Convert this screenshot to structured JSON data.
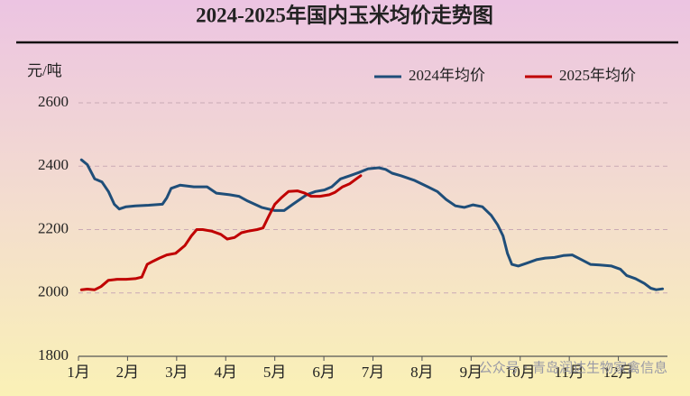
{
  "chart_data": {
    "type": "line",
    "title": "2024-2025年国内玉米均价走势图",
    "y_label": "元/吨",
    "watermark": "公众号 · 青岛润达生物家禽信息",
    "ylim": [
      1800,
      2600
    ],
    "yticks": [
      1800,
      2000,
      2200,
      2400,
      2600
    ],
    "xlim": [
      1,
      13
    ],
    "xticks": [
      {
        "value": 1,
        "label": "1月"
      },
      {
        "value": 2,
        "label": "2月"
      },
      {
        "value": 3,
        "label": "3月"
      },
      {
        "value": 4,
        "label": "4月"
      },
      {
        "value": 5,
        "label": "5月"
      },
      {
        "value": 6,
        "label": "6月"
      },
      {
        "value": 7,
        "label": "7月"
      },
      {
        "value": 8,
        "label": "8月"
      },
      {
        "value": 9,
        "label": "9月"
      },
      {
        "value": 10,
        "label": "10月"
      },
      {
        "value": 11,
        "label": "11月"
      },
      {
        "value": 12,
        "label": "12月"
      }
    ],
    "grid": true,
    "legend_position": "top-right",
    "series": [
      {
        "name": "2024年均价",
        "color": "#1f4e79",
        "x": [
          1.06,
          1.18,
          1.33,
          1.48,
          1.61,
          1.73,
          1.83,
          1.97,
          2.16,
          2.43,
          2.71,
          2.8,
          2.89,
          3.07,
          3.35,
          3.62,
          3.81,
          4.08,
          4.27,
          4.45,
          4.73,
          5.0,
          5.19,
          5.37,
          5.65,
          5.83,
          6.01,
          6.16,
          6.34,
          6.53,
          6.71,
          6.9,
          7.12,
          7.26,
          7.39,
          7.57,
          7.85,
          8.12,
          8.31,
          8.49,
          8.68,
          8.86,
          9.04,
          9.23,
          9.41,
          9.54,
          9.65,
          9.74,
          9.83,
          9.96,
          10.15,
          10.33,
          10.51,
          10.7,
          10.88,
          11.06,
          11.25,
          11.43,
          11.62,
          11.86,
          12.04,
          12.17,
          12.35,
          12.53,
          12.66,
          12.77,
          12.9
        ],
        "values": [
          2420,
          2405,
          2360,
          2350,
          2320,
          2280,
          2265,
          2272,
          2275,
          2277,
          2280,
          2300,
          2330,
          2340,
          2335,
          2335,
          2315,
          2310,
          2305,
          2290,
          2270,
          2260,
          2260,
          2280,
          2310,
          2320,
          2325,
          2335,
          2360,
          2370,
          2380,
          2392,
          2395,
          2390,
          2378,
          2370,
          2355,
          2335,
          2320,
          2295,
          2275,
          2270,
          2278,
          2272,
          2245,
          2215,
          2180,
          2125,
          2090,
          2085,
          2095,
          2105,
          2110,
          2112,
          2118,
          2120,
          2105,
          2090,
          2088,
          2085,
          2075,
          2055,
          2045,
          2030,
          2015,
          2010,
          2013
        ]
      },
      {
        "name": "2025年均价",
        "color": "#c00000",
        "x": [
          1.06,
          1.18,
          1.33,
          1.46,
          1.61,
          1.79,
          1.97,
          2.16,
          2.29,
          2.4,
          2.52,
          2.65,
          2.8,
          2.98,
          3.17,
          3.3,
          3.41,
          3.53,
          3.72,
          3.9,
          4.03,
          4.18,
          4.32,
          4.45,
          4.64,
          4.76,
          4.87,
          5.0,
          5.13,
          5.28,
          5.46,
          5.61,
          5.74,
          5.92,
          6.11,
          6.23,
          6.38,
          6.53,
          6.66,
          6.75
        ],
        "values": [
          2010,
          2012,
          2010,
          2020,
          2040,
          2043,
          2043,
          2045,
          2050,
          2090,
          2100,
          2110,
          2120,
          2125,
          2150,
          2180,
          2200,
          2200,
          2195,
          2185,
          2170,
          2175,
          2190,
          2195,
          2200,
          2205,
          2240,
          2280,
          2300,
          2320,
          2322,
          2315,
          2305,
          2305,
          2310,
          2318,
          2335,
          2345,
          2360,
          2370
        ]
      }
    ]
  }
}
